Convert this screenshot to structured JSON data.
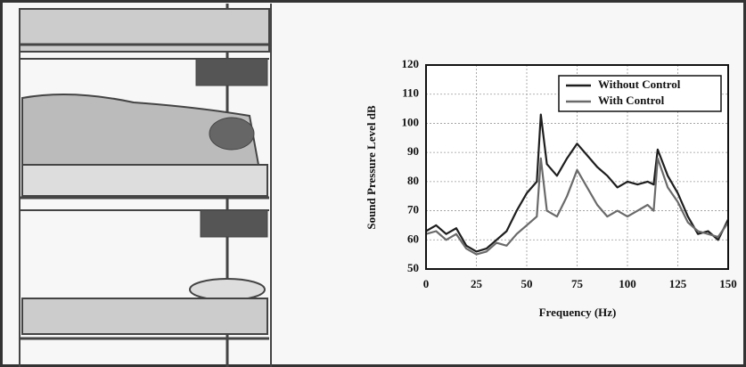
{
  "chart_data": {
    "type": "line",
    "x_label": "Frequency (Hz)",
    "y_label": "Sound Pressure Level dB",
    "x": [
      0,
      5,
      10,
      15,
      20,
      25,
      30,
      35,
      40,
      45,
      50,
      55,
      57,
      60,
      65,
      70,
      75,
      80,
      85,
      90,
      95,
      100,
      105,
      110,
      113,
      115,
      120,
      125,
      130,
      135,
      140,
      145,
      150
    ],
    "series": [
      {
        "name": "Without Control",
        "color": "#1e1e1e",
        "values": [
          63,
          65,
          62,
          64,
          58,
          56,
          57,
          60,
          63,
          70,
          76,
          80,
          103,
          86,
          82,
          88,
          93,
          89,
          85,
          82,
          78,
          80,
          79,
          80,
          79,
          91,
          82,
          76,
          68,
          62,
          63,
          60,
          67
        ]
      },
      {
        "name": "With Control",
        "color": "#6a6a6a",
        "values": [
          62,
          63,
          60,
          62,
          57,
          55,
          56,
          59,
          58,
          62,
          65,
          68,
          88,
          70,
          68,
          75,
          84,
          78,
          72,
          68,
          70,
          68,
          70,
          72,
          70,
          88,
          78,
          73,
          66,
          63,
          62,
          61,
          66
        ]
      }
    ],
    "xlim": [
      0,
      150
    ],
    "xticks": [
      0,
      25,
      50,
      75,
      100,
      125,
      150
    ],
    "ylim": [
      50,
      120
    ],
    "yticks": [
      50,
      60,
      70,
      80,
      90,
      100,
      110,
      120
    ],
    "grid": true,
    "legend": "upper right"
  }
}
